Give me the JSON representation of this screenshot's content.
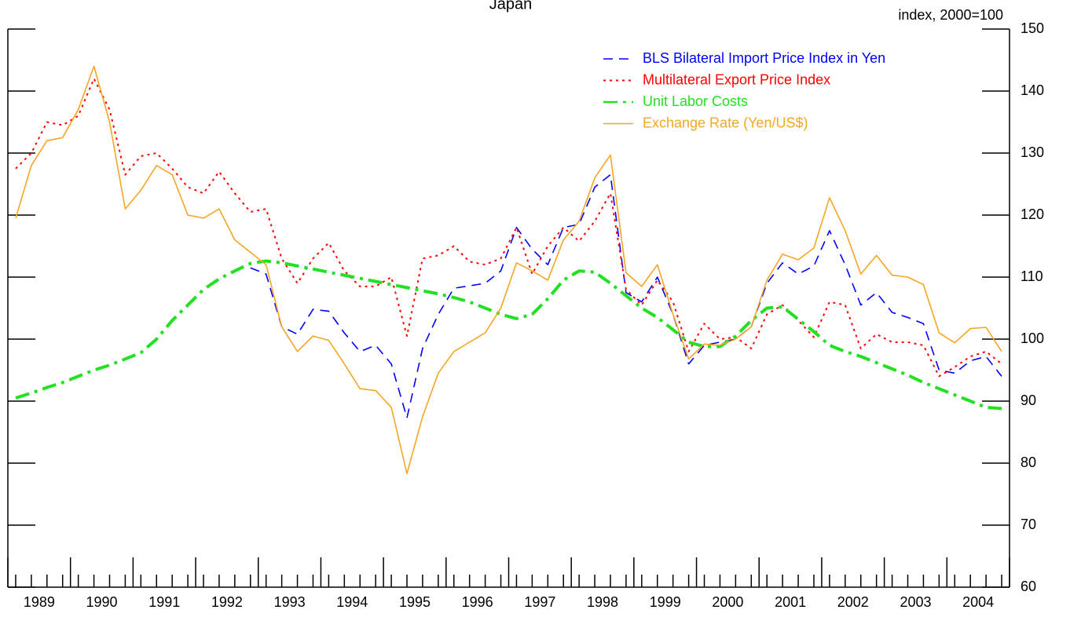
{
  "chart_data": {
    "type": "line",
    "title": "Japan",
    "y_axis_label": "index, 2000=100",
    "categories": [
      "1989",
      "1990",
      "1991",
      "1992",
      "1993",
      "1994",
      "1995",
      "1996",
      "1997",
      "1998",
      "1999",
      "2000",
      "2001",
      "2002",
      "2003",
      "2004"
    ],
    "x": [
      1989.125,
      1989.375,
      1989.625,
      1989.875,
      1990.125,
      1990.375,
      1990.625,
      1990.875,
      1991.125,
      1991.375,
      1991.625,
      1991.875,
      1992.125,
      1992.375,
      1992.625,
      1992.875,
      1993.125,
      1993.375,
      1993.625,
      1993.875,
      1994.125,
      1994.375,
      1994.625,
      1994.875,
      1995.125,
      1995.375,
      1995.625,
      1995.875,
      1996.125,
      1996.375,
      1996.625,
      1996.875,
      1997.125,
      1997.375,
      1997.625,
      1997.875,
      1998.125,
      1998.375,
      1998.625,
      1998.875,
      1999.125,
      1999.375,
      1999.625,
      1999.875,
      2000.125,
      2000.375,
      2000.625,
      2000.875,
      2001.125,
      2001.375,
      2001.625,
      2001.875,
      2002.125,
      2002.375,
      2002.625,
      2002.875,
      2003.125,
      2003.375,
      2003.625,
      2003.875,
      2004.125,
      2004.375,
      2004.625,
      2004.875
    ],
    "xlim": [
      1989,
      2005
    ],
    "xticks": [
      1989,
      1990,
      1991,
      1992,
      1993,
      1994,
      1995,
      1996,
      1997,
      1998,
      1999,
      2000,
      2001,
      2002,
      2003,
      2004,
      2005
    ],
    "ylim": [
      60,
      150
    ],
    "yticks": [
      60,
      70,
      80,
      90,
      100,
      110,
      120,
      130,
      140,
      150
    ],
    "series": [
      {
        "name": "BLS Bilateral Import Price Index in Yen",
        "color": "#0000ff",
        "style": "dashed",
        "values": [
          null,
          null,
          null,
          null,
          null,
          null,
          null,
          null,
          null,
          null,
          null,
          null,
          null,
          null,
          null,
          111.5,
          110.5,
          102,
          100.8,
          104.8,
          104.5,
          101,
          98,
          99,
          96,
          87.3,
          98.5,
          104,
          108.2,
          108.6,
          109,
          111,
          118,
          114.5,
          112,
          118,
          118.5,
          124.5,
          126.5,
          107.5,
          106,
          110,
          104,
          96,
          99,
          99.5,
          100,
          102,
          109,
          112.3,
          110.5,
          111.8,
          117.5,
          112,
          105.5,
          107.5,
          104.3,
          103.5,
          102.5,
          95,
          94.5,
          96.5,
          97.2,
          94
        ]
      },
      {
        "name": "Multilateral Export Price Index",
        "color": "#ff0000",
        "style": "dotted",
        "values": [
          127.5,
          130,
          135,
          134.5,
          136,
          142,
          137,
          126.5,
          129.5,
          130,
          127.5,
          124.5,
          123.5,
          127,
          123.5,
          120.5,
          121,
          113,
          109,
          113,
          115.5,
          111,
          108.5,
          108.5,
          110,
          100.5,
          113,
          113.5,
          115,
          112.5,
          112,
          113,
          118,
          110.5,
          115,
          118,
          115.8,
          119,
          123.5,
          108,
          105.5,
          109.5,
          106,
          98,
          102.5,
          100,
          100.3,
          98.5,
          104,
          105.5,
          103,
          100.3,
          106,
          105.5,
          98.5,
          100.8,
          99.5,
          99.5,
          99,
          94,
          95.5,
          97.2,
          98,
          96
        ]
      },
      {
        "name": "Unit Labor Costs",
        "color": "#22e022",
        "style": "dashdot",
        "values": [
          90.5,
          91.3,
          92.2,
          93,
          94,
          95,
          95.8,
          96.8,
          97.8,
          100,
          103,
          105.5,
          108,
          109.7,
          111,
          112.2,
          112.6,
          112.3,
          111.8,
          111.3,
          110.8,
          110.3,
          109.8,
          109.3,
          108.8,
          108.3,
          107.8,
          107.3,
          106.7,
          106,
          105,
          104,
          103.3,
          104,
          106.5,
          109.5,
          111,
          110.8,
          109,
          107,
          105,
          103.5,
          101.5,
          99.5,
          98.8,
          98.8,
          100.5,
          103,
          105,
          105.2,
          103.2,
          101.2,
          99,
          98,
          97.2,
          96.2,
          95.2,
          94.2,
          93,
          92,
          91,
          90,
          89,
          88.8
        ]
      },
      {
        "name": "Exchange Rate (Yen/US$)",
        "color": "#f5a623",
        "style": "solid",
        "values": [
          119.5,
          128,
          132,
          132.5,
          137,
          144,
          135,
          121,
          124,
          128,
          126.5,
          120,
          119.5,
          121,
          116,
          114,
          112,
          102,
          98,
          100.5,
          99.8,
          96,
          92,
          91.7,
          89,
          78.3,
          87.5,
          94.5,
          98,
          99.5,
          101,
          105,
          112.3,
          111,
          109.5,
          116,
          119,
          126,
          129.7,
          110.7,
          108.5,
          112,
          104,
          96.8,
          99.2,
          99,
          100,
          102,
          109.5,
          113.7,
          112.8,
          114.7,
          122.8,
          117.5,
          110.5,
          113.5,
          110.3,
          110,
          108.8,
          101,
          99.4,
          101.7,
          101.9,
          98
        ]
      }
    ]
  }
}
